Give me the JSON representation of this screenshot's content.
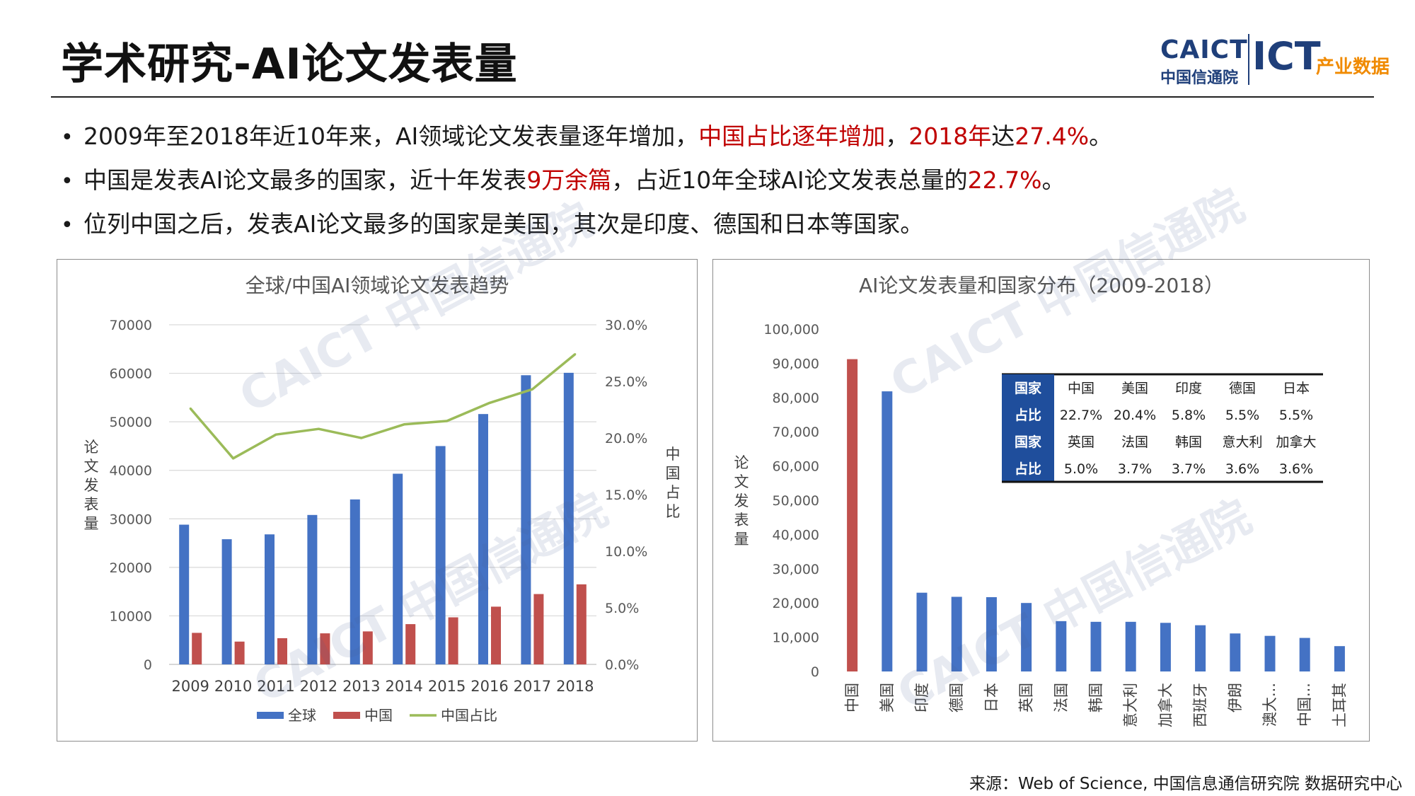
{
  "header": {
    "title": "学术研究-AI论文发表量",
    "logo": {
      "caict": "CAICT",
      "caict_cn": "中国信通院",
      "ict": "ICT",
      "ict_cn": "产业数据"
    }
  },
  "bullets": [
    {
      "parts": [
        {
          "text": "2009年至2018年近10年来，AI领域论文发表量逐年增加，",
          "color": "normal"
        },
        {
          "text": "中国占比逐年增加",
          "color": "red"
        },
        {
          "text": "，",
          "color": "normal"
        },
        {
          "text": "2018年",
          "color": "red"
        },
        {
          "text": "达",
          "color": "normal"
        },
        {
          "text": "27.4%",
          "color": "red"
        },
        {
          "text": "。",
          "color": "normal"
        }
      ]
    },
    {
      "parts": [
        {
          "text": "中国是发表AI论文最多的国家，近十年发表",
          "color": "normal"
        },
        {
          "text": "9万余篇",
          "color": "red"
        },
        {
          "text": "，占近10年全球AI论文发表总量的",
          "color": "normal"
        },
        {
          "text": "22.7%",
          "color": "red"
        },
        {
          "text": "。",
          "color": "normal"
        }
      ]
    },
    {
      "parts": [
        {
          "text": "位列中国之后，发表AI论文最多的国家是美国，其次是印度、德国和日本等国家。",
          "color": "normal"
        }
      ]
    }
  ],
  "watermarks": [
    "CAICT 中国信通院",
    "CAICT 中国信通院",
    "CAICT 中国信通院",
    "CAICT 中国信通院"
  ],
  "colors": {
    "blue": "#4472c4",
    "red": "#c0504d",
    "green": "#9bbb59",
    "table_head": "#1f4e9c"
  },
  "chart_data": [
    {
      "type": "bar",
      "title": "全球/中国AI领域论文发表趋势",
      "ylabel": "论文发表量",
      "y2label": "中国占比",
      "categories": [
        "2009",
        "2010",
        "2011",
        "2012",
        "2013",
        "2014",
        "2015",
        "2016",
        "2017",
        "2018"
      ],
      "ylim": [
        0,
        70000
      ],
      "y_ticks": [
        "0",
        "10000",
        "20000",
        "30000",
        "40000",
        "50000",
        "60000",
        "70000"
      ],
      "y2lim": [
        0,
        30
      ],
      "y2_ticks": [
        "0.0%",
        "5.0%",
        "10.0%",
        "15.0%",
        "20.0%",
        "25.0%",
        "30.0%"
      ],
      "series": [
        {
          "name": "全球",
          "kind": "bar",
          "values": [
            28800,
            25800,
            26800,
            30800,
            34000,
            39300,
            45000,
            51600,
            59600,
            60100
          ]
        },
        {
          "name": "中国",
          "kind": "bar",
          "values": [
            6500,
            4700,
            5400,
            6400,
            6800,
            8300,
            9700,
            11900,
            14500,
            16500
          ]
        },
        {
          "name": "中国占比",
          "kind": "line",
          "axis": "right",
          "values": [
            22.6,
            18.2,
            20.3,
            20.8,
            20.0,
            21.2,
            21.5,
            23.1,
            24.3,
            27.4
          ]
        }
      ],
      "legend": "bottom",
      "grid": true
    },
    {
      "type": "bar",
      "title": "AI论文发表量和国家分布（2009-2018）",
      "ylabel": "论文发表量",
      "categories": [
        "中国",
        "美国",
        "印度",
        "德国",
        "日本",
        "英国",
        "法国",
        "韩国",
        "意大利",
        "加拿大",
        "西班牙",
        "伊朗",
        "澳大...",
        "中国...",
        "土耳其"
      ],
      "ylim": [
        0,
        100000
      ],
      "y_ticks": [
        "0",
        "10,000",
        "20,000",
        "30,000",
        "40,000",
        "50,000",
        "60,000",
        "70,000",
        "80,000",
        "90,000",
        "100,000"
      ],
      "values": [
        91200,
        81800,
        23000,
        21800,
        21700,
        20000,
        14700,
        14500,
        14500,
        14200,
        13500,
        11100,
        10400,
        9800,
        7400
      ],
      "highlight_index": 0,
      "grid": false,
      "table": {
        "rows": [
          {
            "head": "国家",
            "cells": [
              "中国",
              "美国",
              "印度",
              "德国",
              "日本"
            ]
          },
          {
            "head": "占比",
            "cells": [
              "22.7%",
              "20.4%",
              "5.8%",
              "5.5%",
              "5.5%"
            ]
          },
          {
            "head": "国家",
            "cells": [
              "英国",
              "法国",
              "韩国",
              "意大利",
              "加拿大"
            ]
          },
          {
            "head": "占比",
            "cells": [
              "5.0%",
              "3.7%",
              "3.7%",
              "3.6%",
              "3.6%"
            ]
          }
        ]
      }
    }
  ],
  "source": "来源：Web of Science, 中国信息通信研究院 数据研究中心"
}
